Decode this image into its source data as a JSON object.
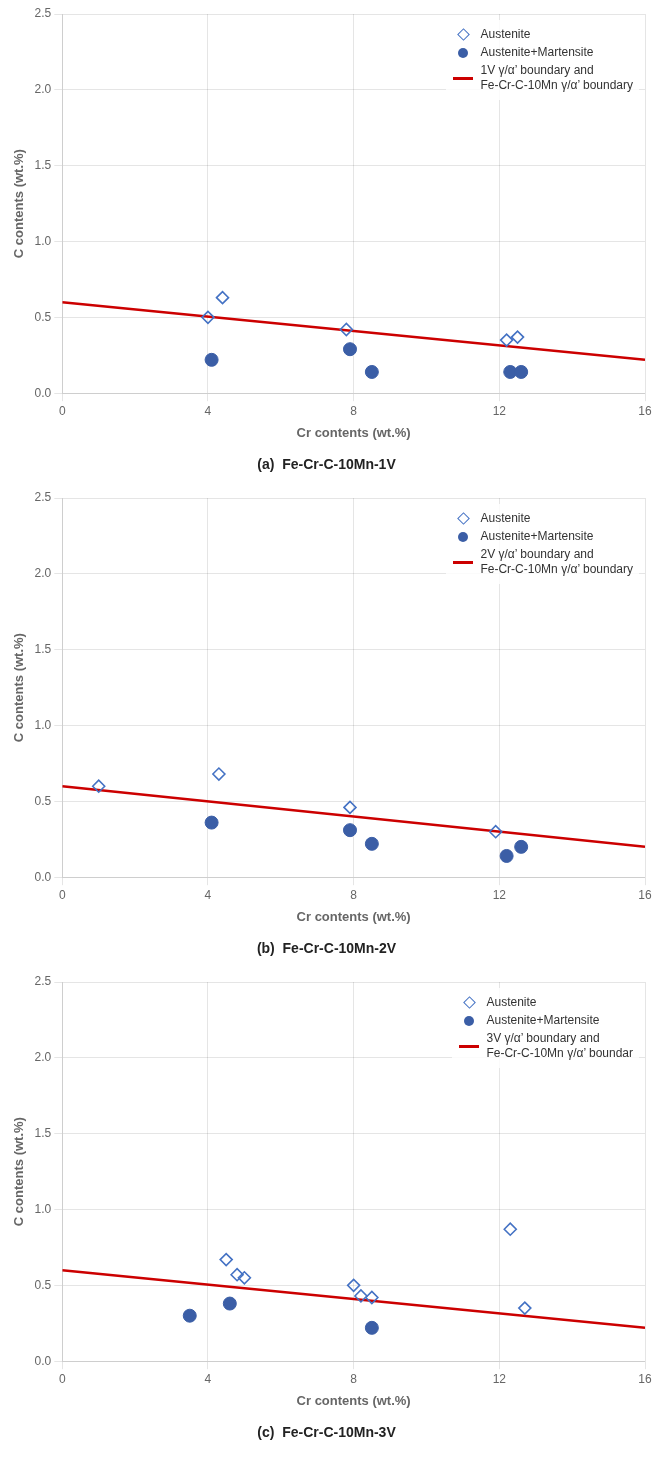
{
  "chart_data": [
    {
      "type": "scatter",
      "subtitle": "(a)  Fe-Cr-C-10Mn-1V",
      "x_label": "Cr contents (wt.%)",
      "y_label": "C contents (wt.%)",
      "xlim": [
        0,
        16
      ],
      "xticks": [
        0,
        4,
        8,
        12,
        16
      ],
      "ylim": [
        0,
        2.5
      ],
      "yticks": [
        {
          "value": 0,
          "label": "0.0"
        },
        0.5,
        {
          "value": 1.0,
          "label": "1.0"
        },
        1.5,
        {
          "value": 2.0,
          "label": "2.0"
        },
        2.5
      ],
      "grid": true,
      "legend": "upper right",
      "series": [
        {
          "name": "Austenite",
          "type": "scatter",
          "marker": "diamond",
          "color": "#4472c4",
          "x": [
            4.0,
            4.4,
            7.8,
            12.2,
            12.5
          ],
          "values": [
            0.5,
            0.63,
            0.42,
            0.35,
            0.37
          ]
        },
        {
          "name": "Austenite+Martensite",
          "type": "scatter",
          "marker": "circle",
          "color": "#3b5ea6",
          "x": [
            4.1,
            7.9,
            8.5,
            12.3,
            12.6
          ],
          "values": [
            0.22,
            0.29,
            0.14,
            0.14,
            0.14
          ]
        },
        {
          "name": "1V γ/α’ boundary and\nFe-Cr-C-10Mn γ/α’ boundary",
          "type": "line",
          "color": "#cc0000",
          "x": [
            0,
            16
          ],
          "values": [
            0.6,
            0.22
          ]
        }
      ]
    },
    {
      "type": "scatter",
      "subtitle": "(b)  Fe-Cr-C-10Mn-2V",
      "x_label": "Cr contents (wt.%)",
      "y_label": "C contents (wt.%)",
      "xlim": [
        0,
        16
      ],
      "xticks": [
        0,
        4,
        8,
        12,
        16
      ],
      "ylim": [
        0,
        2.5
      ],
      "yticks": [
        {
          "value": 0,
          "label": "0.0"
        },
        0.5,
        {
          "value": 1.0,
          "label": "1.0"
        },
        1.5,
        {
          "value": 2.0,
          "label": "2.0"
        },
        2.5
      ],
      "grid": true,
      "legend": "upper right",
      "series": [
        {
          "name": "Austenite",
          "type": "scatter",
          "marker": "diamond",
          "color": "#4472c4",
          "x": [
            1.0,
            4.3,
            7.9,
            11.9
          ],
          "values": [
            0.6,
            0.68,
            0.46,
            0.3
          ]
        },
        {
          "name": "Austenite+Martensite",
          "type": "scatter",
          "marker": "circle",
          "color": "#3b5ea6",
          "x": [
            4.1,
            7.9,
            8.5,
            12.2,
            12.6
          ],
          "values": [
            0.36,
            0.31,
            0.22,
            0.14,
            0.2
          ]
        },
        {
          "name": "2V γ/α’ boundary and\nFe-Cr-C-10Mn γ/α’ boundary",
          "type": "line",
          "color": "#cc0000",
          "x": [
            0,
            16
          ],
          "values": [
            0.6,
            0.2
          ]
        }
      ]
    },
    {
      "type": "scatter",
      "subtitle": "(c)  Fe-Cr-C-10Mn-3V",
      "x_label": "Cr contents (wt.%)",
      "y_label": "C contents (wt.%)",
      "xlim": [
        0,
        16
      ],
      "xticks": [
        0,
        4,
        8,
        12,
        16
      ],
      "ylim": [
        0,
        2.5
      ],
      "yticks": [
        {
          "value": 0,
          "label": "0.0"
        },
        0.5,
        {
          "value": 1.0,
          "label": "1.0"
        },
        1.5,
        {
          "value": 2.0,
          "label": "2.0"
        },
        2.5
      ],
      "grid": true,
      "legend": "upper right",
      "series": [
        {
          "name": "Austenite",
          "type": "scatter",
          "marker": "diamond",
          "color": "#4472c4",
          "x": [
            4.5,
            4.8,
            5.0,
            8.0,
            8.2,
            8.5,
            12.3,
            12.7
          ],
          "values": [
            0.67,
            0.57,
            0.55,
            0.5,
            0.43,
            0.42,
            0.87,
            0.35
          ]
        },
        {
          "name": "Austenite+Martensite",
          "type": "scatter",
          "marker": "circle",
          "color": "#3b5ea6",
          "x": [
            3.5,
            4.6,
            8.5
          ],
          "values": [
            0.3,
            0.38,
            0.22
          ]
        },
        {
          "name": "3V γ/α’ boundary and\nFe-Cr-C-10Mn γ/α’ boundar",
          "type": "line",
          "color": "#cc0000",
          "x": [
            0,
            16
          ],
          "values": [
            0.6,
            0.22
          ]
        }
      ]
    }
  ]
}
